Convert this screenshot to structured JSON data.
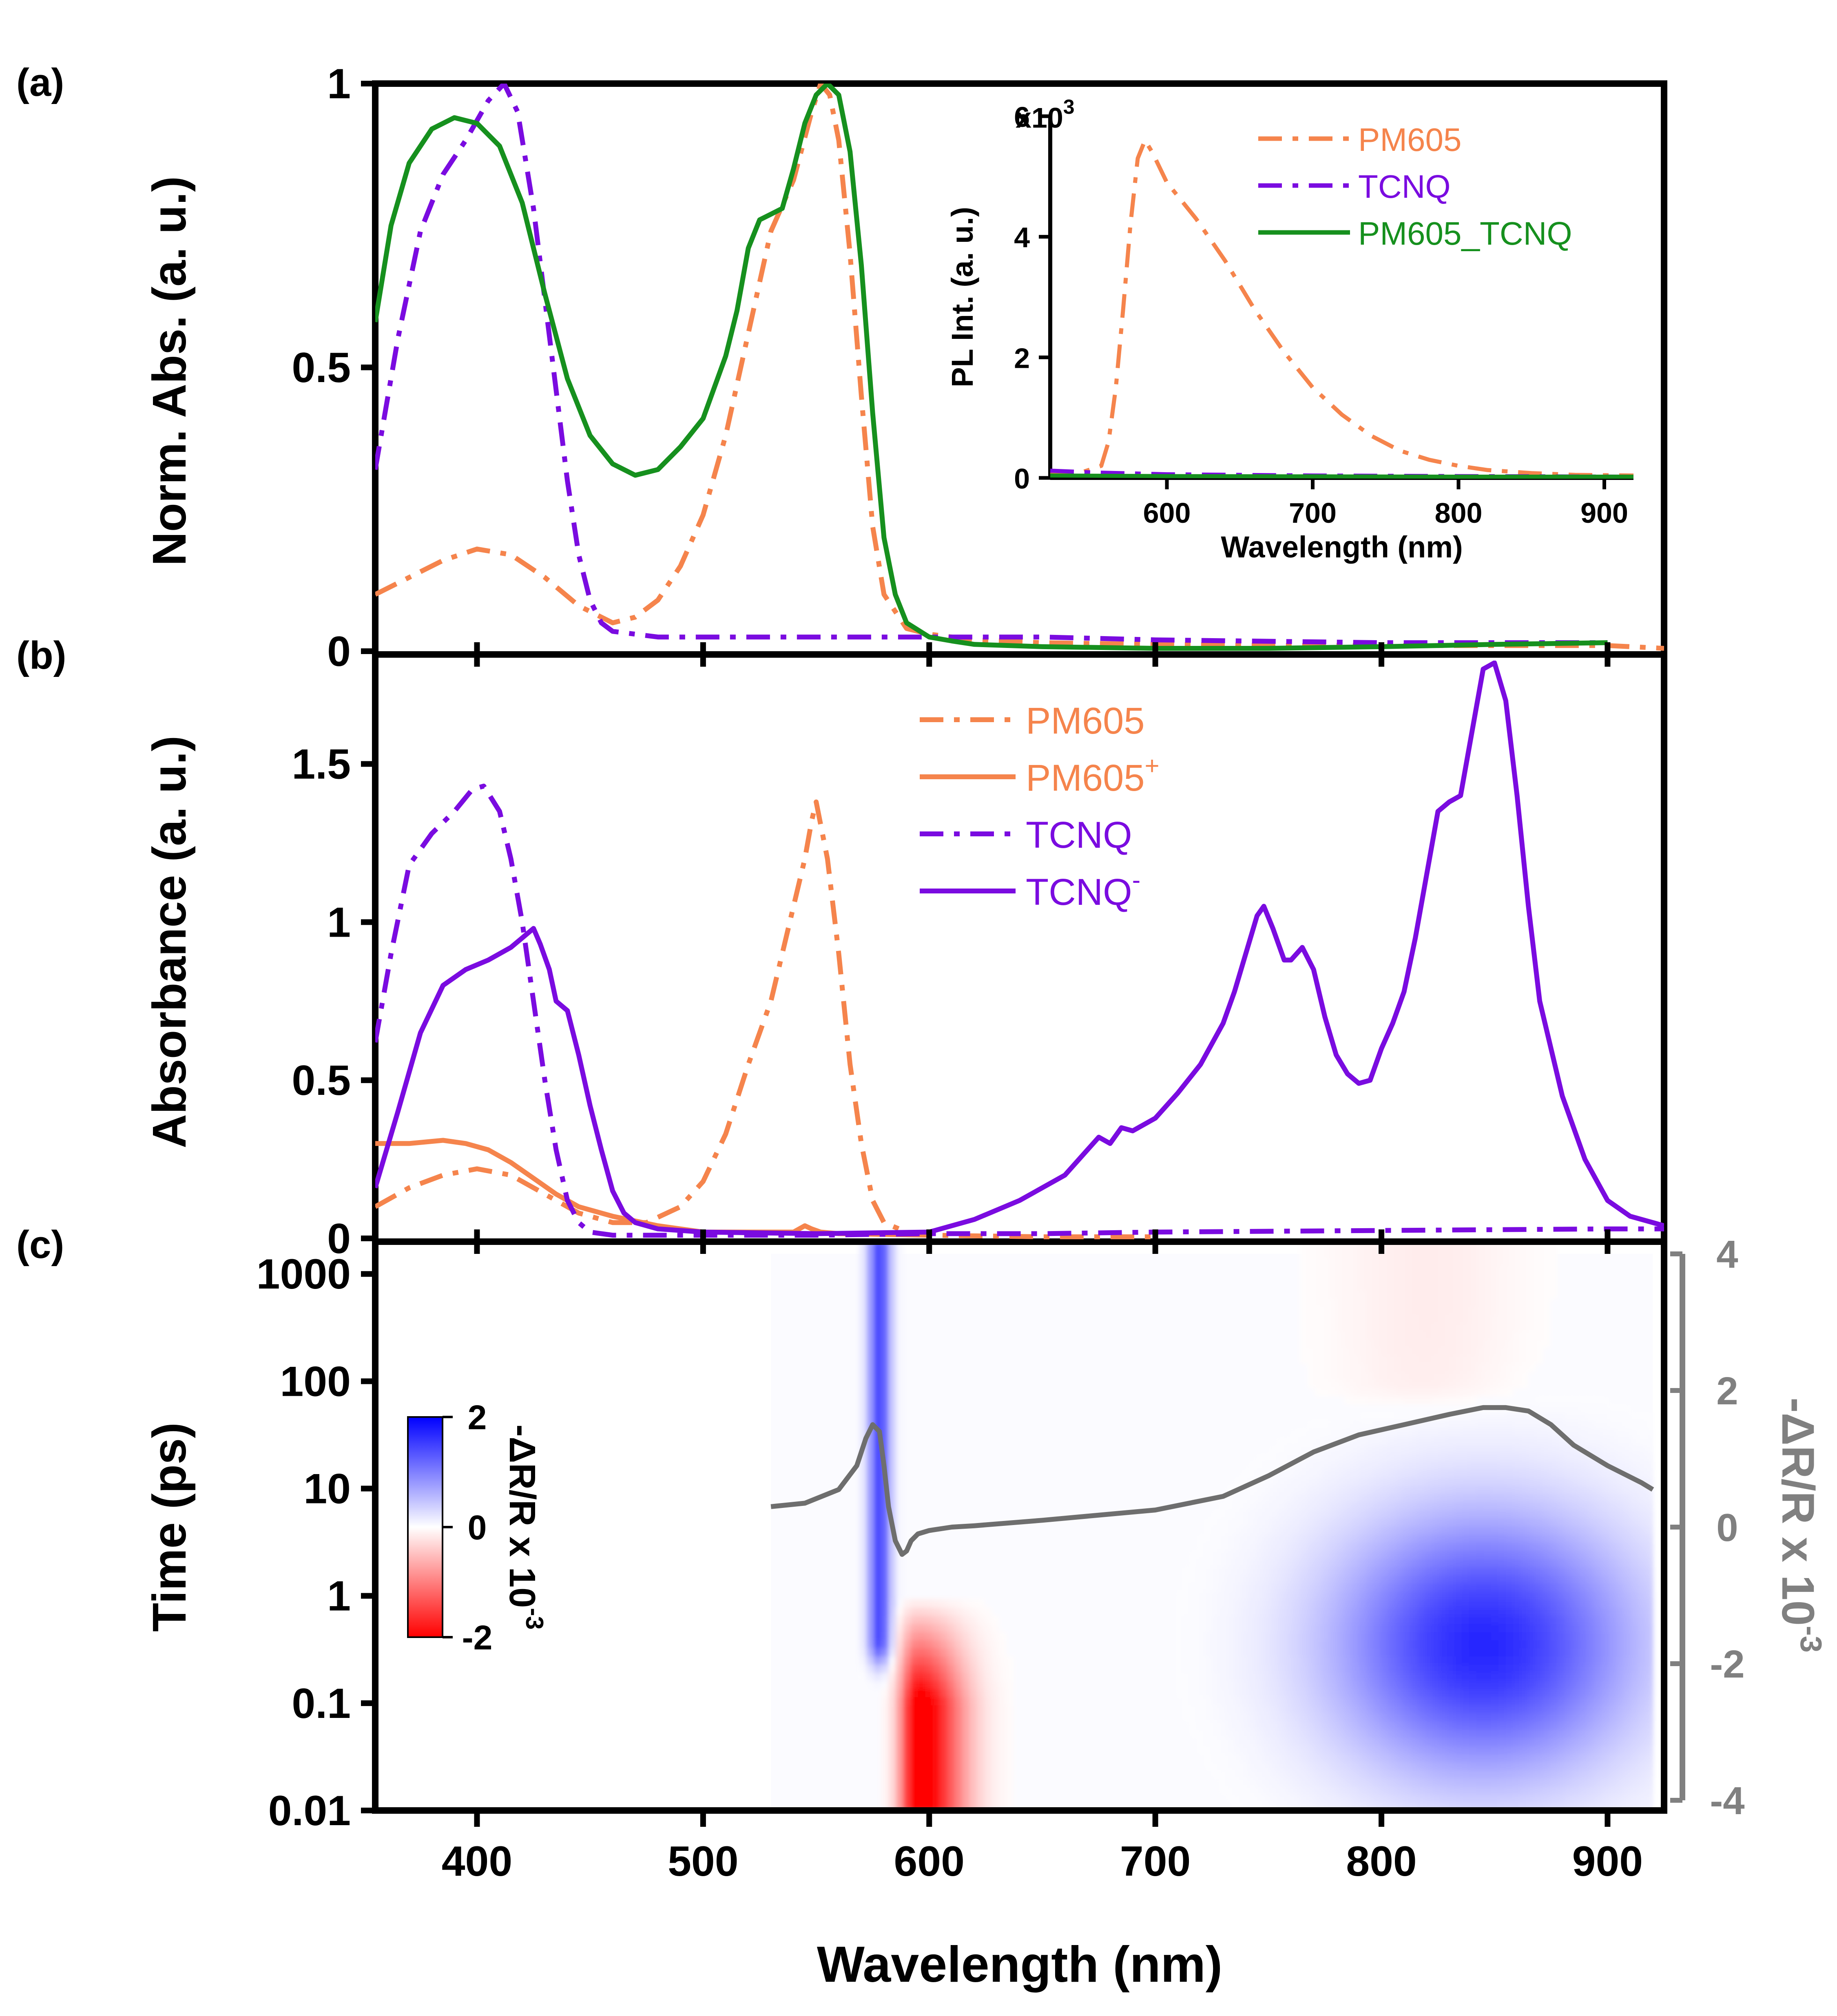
{
  "colors": {
    "pm605": "#F5844C",
    "tcnq": "#7A0BE0",
    "mix": "#16901E",
    "gray": "#6E6E6E",
    "axis": "#000000"
  },
  "x_axis": {
    "title": "Wavelength (nm)",
    "range": [
      355,
      925
    ],
    "ticks": [
      400,
      500,
      600,
      700,
      800,
      900
    ],
    "tick_labels": [
      "400",
      "500",
      "600",
      "700",
      "800",
      "900"
    ]
  },
  "chart_data": [
    {
      "panel": "a",
      "panel_label": "(a)",
      "type": "line",
      "ylabel": "Norm. Abs. (a. u.)",
      "ylim": [
        0,
        1
      ],
      "yticks": [
        0,
        0.5,
        1
      ],
      "ytick_labels": [
        "0",
        "0.5",
        "1"
      ],
      "series": [
        {
          "name": "PM605",
          "style": "dashdot",
          "color_key": "pm605",
          "x": [
            355,
            370,
            385,
            400,
            415,
            430,
            445,
            460,
            470,
            480,
            490,
            500,
            510,
            520,
            530,
            540,
            548,
            552,
            556,
            560,
            565,
            570,
            575,
            580,
            590,
            600,
            620,
            650,
            700,
            750,
            800,
            850,
            900,
            925
          ],
          "y": [
            0.1,
            0.13,
            0.16,
            0.18,
            0.17,
            0.13,
            0.08,
            0.05,
            0.06,
            0.09,
            0.15,
            0.24,
            0.38,
            0.56,
            0.74,
            0.83,
            0.95,
            1.0,
            0.98,
            0.9,
            0.7,
            0.45,
            0.22,
            0.1,
            0.04,
            0.03,
            0.02,
            0.015,
            0.012,
            0.01,
            0.01,
            0.01,
            0.01,
            0.005
          ]
        },
        {
          "name": "TCNQ",
          "style": "dashdot",
          "color_key": "tcnq",
          "x": [
            355,
            365,
            375,
            385,
            395,
            405,
            412,
            418,
            425,
            430,
            435,
            440,
            445,
            450,
            455,
            460,
            470,
            480,
            500,
            550,
            600,
            650,
            700,
            800,
            900
          ],
          "y": [
            0.32,
            0.55,
            0.74,
            0.84,
            0.9,
            0.97,
            1.0,
            0.95,
            0.78,
            0.62,
            0.46,
            0.3,
            0.17,
            0.09,
            0.05,
            0.035,
            0.03,
            0.025,
            0.025,
            0.025,
            0.025,
            0.025,
            0.02,
            0.015,
            0.015
          ]
        },
        {
          "name": "PM605_TCNQ",
          "style": "solid",
          "color_key": "mix",
          "x": [
            355,
            362,
            370,
            380,
            390,
            400,
            410,
            420,
            430,
            440,
            450,
            460,
            470,
            480,
            490,
            500,
            510,
            515,
            520,
            525,
            530,
            535,
            540,
            545,
            550,
            555,
            560,
            565,
            570,
            575,
            580,
            585,
            590,
            600,
            610,
            620,
            650,
            700,
            750,
            800,
            850,
            900
          ],
          "y": [
            0.58,
            0.75,
            0.86,
            0.92,
            0.94,
            0.93,
            0.89,
            0.79,
            0.63,
            0.48,
            0.38,
            0.33,
            0.31,
            0.32,
            0.36,
            0.41,
            0.52,
            0.6,
            0.71,
            0.76,
            0.77,
            0.78,
            0.85,
            0.93,
            0.98,
            1.0,
            0.98,
            0.88,
            0.68,
            0.42,
            0.2,
            0.1,
            0.05,
            0.025,
            0.018,
            0.012,
            0.008,
            0.005,
            0.005,
            0.008,
            0.012,
            0.015
          ]
        }
      ],
      "legend": [
        "PM605",
        "TCNQ",
        "PM605_TCNQ"
      ],
      "inset": {
        "ylabel": "PL Int. (a. u.)",
        "xlabel": "Wavelength (nm)",
        "xlim": [
          520,
          920
        ],
        "ylim": [
          0,
          6000
        ],
        "xticks": [
          600,
          700,
          800,
          900
        ],
        "xtick_labels": [
          "600",
          "700",
          "800",
          "900"
        ],
        "yticks": [
          0,
          2000,
          4000,
          6000
        ],
        "ytick_labels": [
          "0",
          "2",
          "4",
          "6"
        ],
        "y_multiplier": "x10",
        "y_exponent": "3",
        "series": [
          {
            "name": "PM605",
            "style": "dashdot",
            "color_key": "pm605",
            "x": [
              520,
              540,
              555,
              560,
              565,
              570,
              575,
              580,
              585,
              590,
              600,
              620,
              640,
              660,
              680,
              700,
              720,
              740,
              760,
              780,
              800,
              820,
              850,
              880,
              920
            ],
            "y": [
              50,
              80,
              200,
              600,
              1500,
              2800,
              4200,
              5300,
              5600,
              5400,
              4900,
              4300,
              3600,
              2800,
              2100,
              1500,
              1050,
              700,
              450,
              300,
              200,
              130,
              80,
              50,
              40
            ]
          },
          {
            "name": "TCNQ",
            "style": "dashdot",
            "color_key": "tcnq",
            "x": [
              520,
              550,
              600,
              700,
              800,
              920
            ],
            "y": [
              120,
              90,
              60,
              40,
              30,
              20
            ]
          },
          {
            "name": "PM605_TCNQ",
            "style": "solid",
            "color_key": "mix",
            "x": [
              520,
              600,
              700,
              800,
              920
            ],
            "y": [
              40,
              30,
              25,
              20,
              20
            ]
          }
        ]
      }
    },
    {
      "panel": "b",
      "panel_label": "(b)",
      "type": "line",
      "ylabel": "Absorbance (a. u.)",
      "ylim": [
        0,
        1.85
      ],
      "yticks": [
        0,
        0.5,
        1,
        1.5
      ],
      "ytick_labels": [
        "0",
        "0.5",
        "1",
        "1.5"
      ],
      "series": [
        {
          "name": "PM605",
          "style": "dashdot",
          "color_key": "pm605",
          "x": [
            355,
            370,
            385,
            400,
            415,
            430,
            445,
            460,
            475,
            490,
            500,
            510,
            520,
            530,
            535,
            540,
            545,
            548,
            550,
            555,
            560,
            565,
            570,
            575,
            580,
            590,
            600,
            650,
            700
          ],
          "y": [
            0.1,
            0.16,
            0.2,
            0.22,
            0.2,
            0.14,
            0.08,
            0.05,
            0.05,
            0.1,
            0.18,
            0.33,
            0.55,
            0.75,
            0.9,
            1.05,
            1.2,
            1.32,
            1.38,
            1.2,
            0.9,
            0.55,
            0.3,
            0.12,
            0.05,
            0.02,
            0.01,
            0.005,
            0.005
          ]
        },
        {
          "name": "PM605+",
          "style": "solid",
          "color_key": "pm605",
          "x": [
            355,
            370,
            385,
            395,
            405,
            415,
            425,
            435,
            445,
            460,
            480,
            500,
            540,
            545,
            548,
            552,
            560,
            600
          ],
          "y": [
            0.3,
            0.3,
            0.31,
            0.3,
            0.28,
            0.24,
            0.19,
            0.14,
            0.1,
            0.07,
            0.04,
            0.02,
            0.02,
            0.04,
            0.03,
            0.02,
            0.015,
            0.01
          ]
        },
        {
          "name": "TCNQ",
          "style": "dashdot",
          "color_key": "tcnq",
          "x": [
            355,
            362,
            370,
            380,
            390,
            398,
            403,
            410,
            415,
            420,
            425,
            430,
            435,
            440,
            445,
            450,
            460,
            470,
            500,
            550,
            600,
            650,
            700,
            800,
            900,
            925
          ],
          "y": [
            0.62,
            0.9,
            1.18,
            1.28,
            1.35,
            1.42,
            1.43,
            1.35,
            1.2,
            1.0,
            0.75,
            0.5,
            0.28,
            0.12,
            0.05,
            0.02,
            0.01,
            0.01,
            0.01,
            0.01,
            0.015,
            0.015,
            0.02,
            0.025,
            0.03,
            0.03
          ]
        },
        {
          "name": "TCNQ-",
          "style": "solid",
          "color_key": "tcnq",
          "x": [
            355,
            365,
            375,
            385,
            395,
            405,
            415,
            420,
            425,
            428,
            432,
            435,
            440,
            445,
            450,
            455,
            460,
            465,
            470,
            480,
            500,
            550,
            600,
            620,
            640,
            660,
            670,
            675,
            680,
            685,
            690,
            700,
            710,
            720,
            730,
            735,
            740,
            745,
            748,
            752,
            757,
            760,
            765,
            770,
            775,
            780,
            785,
            790,
            795,
            800,
            805,
            810,
            815,
            820,
            825,
            830,
            835,
            840,
            845,
            850,
            855,
            860,
            865,
            870,
            880,
            890,
            900,
            910,
            920,
            925
          ],
          "y": [
            0.16,
            0.4,
            0.65,
            0.8,
            0.85,
            0.88,
            0.92,
            0.95,
            0.98,
            0.93,
            0.85,
            0.75,
            0.72,
            0.58,
            0.42,
            0.28,
            0.15,
            0.08,
            0.05,
            0.03,
            0.02,
            0.015,
            0.02,
            0.06,
            0.12,
            0.2,
            0.28,
            0.32,
            0.3,
            0.35,
            0.34,
            0.38,
            0.46,
            0.55,
            0.68,
            0.78,
            0.9,
            1.02,
            1.05,
            0.98,
            0.88,
            0.88,
            0.92,
            0.85,
            0.7,
            0.58,
            0.52,
            0.49,
            0.5,
            0.6,
            0.68,
            0.78,
            0.95,
            1.15,
            1.35,
            1.38,
            1.4,
            1.6,
            1.8,
            1.82,
            1.7,
            1.4,
            1.05,
            0.75,
            0.45,
            0.25,
            0.12,
            0.07,
            0.05,
            0.04
          ]
        }
      ],
      "legend": [
        {
          "base": "PM605",
          "sup": ""
        },
        {
          "base": "PM605",
          "sup": "+"
        },
        {
          "base": "TCNQ",
          "sup": ""
        },
        {
          "base": "TCNQ",
          "sup": "-"
        }
      ]
    },
    {
      "panel": "c",
      "panel_label": "(c)",
      "type": "heatmap",
      "ylabel": "Time (ps)",
      "y_scale": "log",
      "ylim": [
        0.01,
        2000
      ],
      "yticks": [
        0.01,
        0.1,
        1,
        10,
        100,
        1000
      ],
      "ytick_labels": [
        "0.01",
        "0.1",
        "1",
        "10",
        "100",
        "1000"
      ],
      "data_x_range": [
        530,
        920
      ],
      "colorbar": {
        "label": "-ΔR/R x 10",
        "exponent": "-3",
        "range": [
          -2,
          2
        ],
        "ticks": [
          "2",
          "0",
          "-2"
        ],
        "colors": [
          "#0000FF",
          "#FFFFFF",
          "#FF0000"
        ]
      },
      "right_axis": {
        "label": "-ΔR/R x 10",
        "exponent": "-3",
        "range": [
          -4,
          4
        ],
        "ticks": [
          4,
          2,
          0,
          -2,
          -4
        ],
        "tick_labels": [
          "4",
          "2",
          "0",
          "-2",
          "-4"
        ]
      },
      "trace": {
        "name": "-ΔR/R spectrum",
        "color_key": "gray",
        "x": [
          530,
          545,
          560,
          568,
          572,
          575,
          578,
          580,
          582,
          585,
          588,
          590,
          592,
          595,
          600,
          610,
          620,
          650,
          700,
          730,
          750,
          770,
          790,
          810,
          830,
          845,
          855,
          865,
          875,
          885,
          900,
          915,
          920
        ],
        "y": [
          0.3,
          0.35,
          0.55,
          0.9,
          1.3,
          1.5,
          1.4,
          0.9,
          0.3,
          -0.2,
          -0.4,
          -0.35,
          -0.2,
          -0.1,
          -0.05,
          0.0,
          0.02,
          0.1,
          0.25,
          0.45,
          0.75,
          1.1,
          1.35,
          1.5,
          1.65,
          1.75,
          1.75,
          1.7,
          1.5,
          1.2,
          0.9,
          0.65,
          0.55
        ]
      },
      "features": [
        {
          "type": "bleach",
          "center_nm": 578,
          "width_nm": 5,
          "time_range_ps": [
            0.4,
            2000
          ],
          "amplitude": 1.5
        },
        {
          "type": "induced",
          "center_nm": 595,
          "width_nm": 20,
          "time_range_ps": [
            0.01,
            1
          ],
          "amplitude": -2.2
        },
        {
          "type": "bleach",
          "center_nm": 845,
          "width_nm": 65,
          "time_range_ps": [
            0.03,
            60
          ],
          "amplitude": 1.7
        },
        {
          "type": "weak_induced",
          "center_nm": 820,
          "width_nm": 40,
          "time_range_ps": [
            100,
            2000
          ],
          "amplitude": -0.15
        }
      ]
    }
  ]
}
